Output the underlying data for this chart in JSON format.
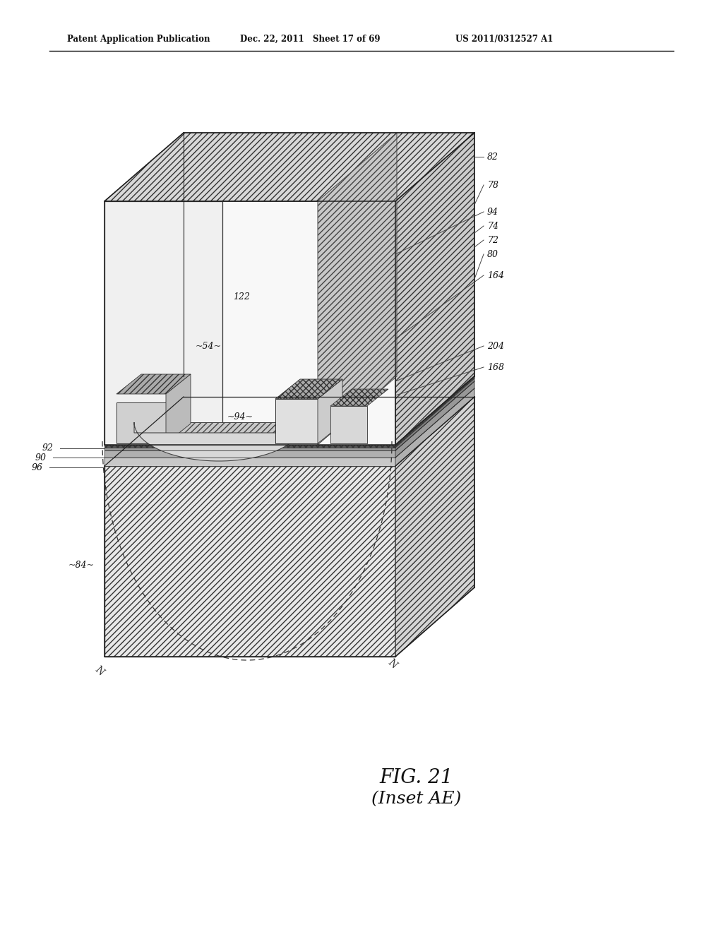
{
  "bg_color": "#ffffff",
  "header_left": "Patent Application Publication",
  "header_mid": "Dec. 22, 2011   Sheet 17 of 69",
  "header_right": "US 2011/0312527 A1",
  "fig_label": "FIG. 21",
  "fig_sublabel": "(Inset AE)"
}
